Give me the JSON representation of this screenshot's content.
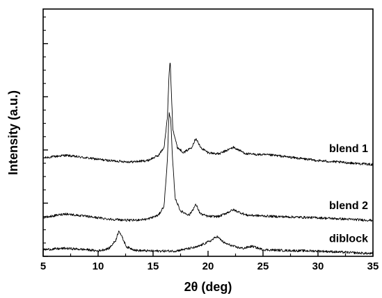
{
  "chart_data": {
    "type": "line",
    "title": "",
    "xlabel": "2θ (deg)",
    "ylabel": "Intensity (a.u.)",
    "xlim": [
      5,
      35
    ],
    "x_ticks": [
      5,
      10,
      15,
      20,
      25,
      30,
      35
    ],
    "x_tick_labels": [
      "5",
      "10",
      "15",
      "20",
      "25",
      "30",
      "35"
    ],
    "y_tick_labels_shown": false,
    "grid": false,
    "series": [
      {
        "name": "blend 1",
        "x": [
          5,
          7,
          9,
          11,
          13,
          14.5,
          15.5,
          16,
          16.3,
          16.45,
          16.55,
          16.65,
          16.8,
          17.2,
          17.8,
          18.5,
          18.9,
          19.3,
          20,
          21,
          22.3,
          23.5,
          26,
          30,
          35
        ],
        "y": [
          3.7,
          3.8,
          3.7,
          3.6,
          3.55,
          3.6,
          3.8,
          4.1,
          5.2,
          6.8,
          7.4,
          6.3,
          4.8,
          4.1,
          3.9,
          4.1,
          4.45,
          4.1,
          3.9,
          3.85,
          4.1,
          3.85,
          3.8,
          3.6,
          3.45
        ]
      },
      {
        "name": "blend 2",
        "x": [
          5,
          7,
          9,
          11,
          13,
          14.5,
          15.5,
          16,
          16.3,
          16.45,
          16.6,
          16.75,
          17,
          17.5,
          18.3,
          18.9,
          19.3,
          20,
          21,
          22.3,
          23.5,
          26,
          30,
          35
        ],
        "y": [
          1.45,
          1.6,
          1.5,
          1.4,
          1.35,
          1.4,
          1.55,
          1.9,
          3.6,
          5.4,
          5.2,
          3.8,
          2.2,
          1.7,
          1.55,
          1.95,
          1.6,
          1.5,
          1.5,
          1.75,
          1.55,
          1.5,
          1.45,
          1.35
        ]
      },
      {
        "name": "diblock",
        "x": [
          5,
          7,
          9,
          10,
          11,
          11.6,
          11.9,
          12.2,
          12.6,
          13.5,
          15,
          17,
          19,
          20.3,
          20.8,
          21.5,
          22.5,
          23.2,
          24,
          25,
          27,
          30,
          35
        ],
        "y": [
          0.25,
          0.3,
          0.25,
          0.2,
          0.3,
          0.6,
          0.98,
          0.7,
          0.35,
          0.22,
          0.2,
          0.2,
          0.35,
          0.6,
          0.75,
          0.5,
          0.35,
          0.3,
          0.38,
          0.25,
          0.22,
          0.2,
          0.1
        ]
      }
    ],
    "annotations": [
      {
        "label": "blend 1",
        "series": "blend 1"
      },
      {
        "label": "blend 2",
        "series": "blend 2"
      },
      {
        "label": "diblock",
        "series": "diblock"
      }
    ]
  }
}
